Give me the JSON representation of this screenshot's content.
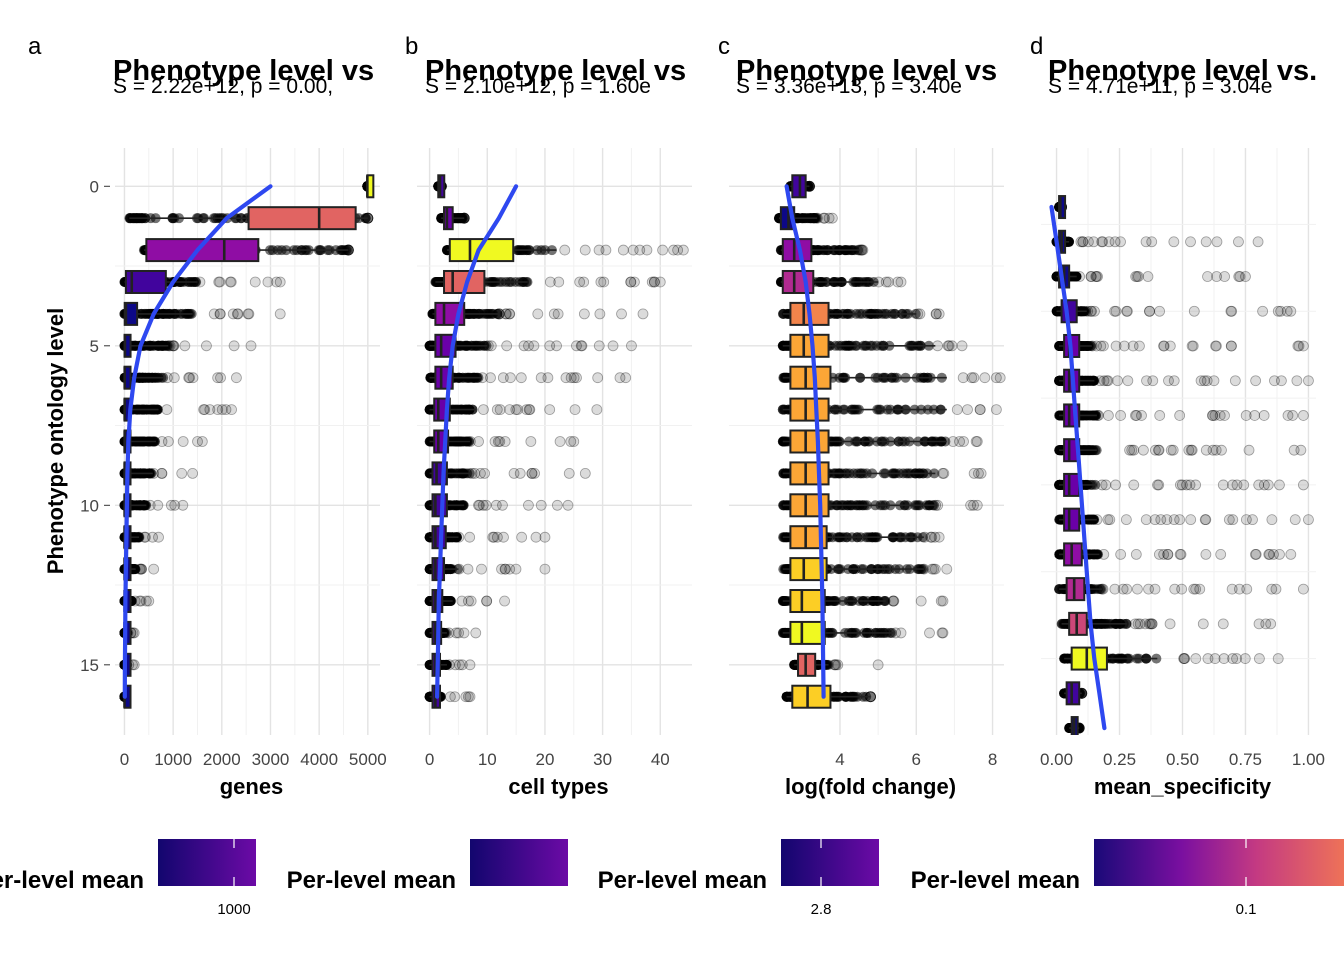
{
  "y_axis_title": "Phenotype ontology level",
  "colors": {
    "points": "#000000",
    "trend": "#2E48F0",
    "grid_major": "#E3E3E3",
    "grid_minor": "#F1F1F1",
    "box_outline": "#222222",
    "palette": [
      "#0D0887",
      "#41049D",
      "#6A00A8",
      "#8F0DA4",
      "#B12A90",
      "#CC4778",
      "#E16462",
      "#F2844B",
      "#FCA636",
      "#FCCE25",
      "#F0F921"
    ]
  },
  "chart_data": [
    {
      "letter": "a",
      "title": "Phenotype level vs",
      "subtitle": "S = 2.22e+12, p = 0.00,",
      "type": "box",
      "xlabel": "genes",
      "ylabel": "Phenotype ontology level",
      "xlim": [
        -30,
        5250
      ],
      "ylim": [
        -1.2,
        17.2
      ],
      "xticks": [
        0,
        1000,
        2000,
        3000,
        4000,
        5000
      ],
      "xticklabels": [
        "0",
        "1000",
        "2000",
        "3000",
        "4000",
        "5000"
      ],
      "yticks": [
        0,
        5,
        10,
        15
      ],
      "levels": [
        0,
        1,
        2,
        3,
        4,
        5,
        6,
        7,
        8,
        9,
        10,
        11,
        12,
        13,
        14,
        15,
        16
      ],
      "boxes": [
        [
          4990,
          4990,
          4990,
          5000,
          5000
        ],
        [
          100,
          2550,
          4000,
          4750,
          5000
        ],
        [
          400,
          450,
          2050,
          2750,
          4600
        ],
        [
          0,
          30,
          150,
          850,
          1500
        ],
        [
          0,
          5,
          30,
          260,
          1400
        ],
        [
          0,
          2,
          10,
          50,
          900
        ],
        [
          0,
          1,
          5,
          30,
          800
        ],
        [
          0,
          1,
          4,
          25,
          700
        ],
        [
          0,
          1,
          4,
          20,
          650
        ],
        [
          0,
          1,
          3,
          18,
          580
        ],
        [
          0,
          1,
          3,
          15,
          450
        ],
        [
          0,
          1,
          2,
          12,
          300
        ],
        [
          0,
          1,
          2,
          10,
          230
        ],
        [
          0,
          1,
          2,
          8,
          150
        ],
        [
          0,
          1,
          1,
          5,
          60
        ],
        [
          0,
          1,
          1,
          3,
          40
        ],
        [
          0,
          1,
          1,
          2,
          10
        ]
      ],
      "fill_index": [
        10,
        6,
        3,
        1,
        0,
        0,
        0,
        0,
        0,
        0,
        0,
        0,
        0,
        0,
        0,
        0,
        0
      ],
      "outlier_max": [
        5000,
        5000,
        4600,
        3200,
        3200,
        2600,
        2300,
        2200,
        1600,
        1400,
        1200,
        700,
        600,
        500,
        200,
        200,
        10
      ],
      "trend_x": [
        3000,
        2100,
        1500,
        1000,
        600,
        330,
        200,
        120,
        80,
        60,
        50,
        40,
        30,
        20,
        15,
        10,
        8
      ],
      "legend": {
        "title": "Per-level mean",
        "ticks": [
          "1000"
        ],
        "cut_left": true
      }
    },
    {
      "letter": "b",
      "title": "Phenotype level vs",
      "subtitle": "S = 2.10e+12, p = 1.60e",
      "type": "box",
      "xlabel": "cell types",
      "ylabel": "",
      "xlim": [
        -0.8,
        45.5
      ],
      "ylim": [
        -1.2,
        17.2
      ],
      "xticks": [
        0,
        10,
        20,
        30,
        40
      ],
      "xticklabels": [
        "0",
        "10",
        "20",
        "30",
        "40"
      ],
      "yticks": [
        0,
        5,
        10,
        15
      ],
      "levels": [
        0,
        1,
        2,
        3,
        4,
        5,
        6,
        7,
        8,
        9,
        10,
        11,
        12,
        13,
        14,
        15,
        16
      ],
      "boxes": [
        [
          1.5,
          1.5,
          1.8,
          2.1,
          2.1
        ],
        [
          2,
          2.5,
          3,
          4,
          6
        ],
        [
          3,
          3.5,
          7,
          14.5,
          22
        ],
        [
          1,
          2.5,
          4,
          9.5,
          17
        ],
        [
          0.5,
          1,
          2.5,
          6,
          12
        ],
        [
          0,
          1,
          2,
          4.5,
          10
        ],
        [
          0,
          1,
          2,
          4,
          9
        ],
        [
          0,
          0.8,
          1.5,
          3.5,
          8
        ],
        [
          0,
          0.8,
          1.5,
          3.2,
          7
        ],
        [
          0,
          0.5,
          1.2,
          3,
          7
        ],
        [
          0,
          0.5,
          1,
          3,
          6
        ],
        [
          0,
          0.5,
          1,
          2.8,
          5
        ],
        [
          0,
          0.5,
          1,
          2.5,
          5
        ],
        [
          0,
          0.5,
          1,
          2.2,
          4
        ],
        [
          0,
          0.5,
          1,
          2,
          3
        ],
        [
          0,
          0.5,
          1,
          1.8,
          3
        ],
        [
          0,
          0.5,
          1,
          1.8,
          2
        ]
      ],
      "fill_index": [
        1,
        2,
        10,
        6,
        3,
        2,
        2,
        2,
        2,
        1,
        1,
        1,
        1,
        1,
        1,
        1,
        1
      ],
      "outlier_max": [
        2,
        6,
        44,
        40,
        37,
        35,
        34,
        29,
        25,
        27,
        24,
        20,
        20,
        13,
        8,
        7,
        7
      ],
      "trend_x": [
        15,
        12,
        8.5,
        6.5,
        5,
        4,
        3.4,
        3,
        2.7,
        2.4,
        2.2,
        2,
        1.8,
        1.6,
        1.5,
        1.4,
        1.3
      ],
      "legend": {
        "title": "Per-level mean",
        "ticks": [],
        "cut_left": false
      }
    },
    {
      "letter": "c",
      "title": "Phenotype level vs",
      "subtitle": "S = 3.36e+13, p = 3.40e",
      "type": "box",
      "xlabel": "log(fold change)",
      "ylabel": "",
      "xlim": [
        1.3,
        8.3
      ],
      "ylim": [
        -1.2,
        17.2
      ],
      "xticks": [
        4,
        6,
        8
      ],
      "xticklabels": [
        "4",
        "6",
        "8"
      ],
      "yticks": [
        0,
        5,
        10,
        15
      ],
      "levels": [
        0,
        1,
        2,
        3,
        4,
        5,
        6,
        7,
        8,
        9,
        10,
        11,
        12,
        13,
        14,
        15,
        16
      ],
      "boxes": [
        [
          2.7,
          2.75,
          2.95,
          3.1,
          3.2
        ],
        [
          2.4,
          2.45,
          2.65,
          2.8,
          3.4
        ],
        [
          2.45,
          2.5,
          2.8,
          3.25,
          4.5
        ],
        [
          2.45,
          2.5,
          2.8,
          3.3,
          5.0
        ],
        [
          2.5,
          2.7,
          3.05,
          3.7,
          6.0
        ],
        [
          2.5,
          2.7,
          3.05,
          3.7,
          6.5
        ],
        [
          2.5,
          2.7,
          3.1,
          3.75,
          6.8
        ],
        [
          2.5,
          2.7,
          3.1,
          3.7,
          6.8
        ],
        [
          2.5,
          2.7,
          3.1,
          3.7,
          6.8
        ],
        [
          2.5,
          2.7,
          3.1,
          3.7,
          6.5
        ],
        [
          2.5,
          2.7,
          3.1,
          3.7,
          6.5
        ],
        [
          2.5,
          2.7,
          3.1,
          3.65,
          6.2
        ],
        [
          2.5,
          2.7,
          3.05,
          3.65,
          6.2
        ],
        [
          2.5,
          2.7,
          3.0,
          3.6,
          5.2
        ],
        [
          2.5,
          2.7,
          3.0,
          3.6,
          5.4
        ],
        [
          2.8,
          2.9,
          3.1,
          3.35,
          3.7
        ],
        [
          2.6,
          2.75,
          3.15,
          3.75,
          4.8
        ]
      ],
      "fill_index": [
        1,
        0,
        3,
        4,
        7,
        8,
        8,
        8,
        8,
        8,
        8,
        8,
        9,
        9,
        10,
        6,
        9
      ],
      "outlier_max": [
        3.2,
        3.8,
        4.6,
        5.6,
        6.6,
        7.2,
        8.2,
        8.1,
        7.6,
        7.7,
        7.6,
        6.6,
        6.8,
        6.7,
        6.7,
        5.0,
        4.8
      ],
      "trend_x": [
        2.6,
        2.75,
        2.95,
        3.1,
        3.2,
        3.28,
        3.34,
        3.38,
        3.42,
        3.45,
        3.48,
        3.5,
        3.52,
        3.54,
        3.55,
        3.56,
        3.57
      ],
      "legend": {
        "title": "Per-level mean",
        "ticks": [
          "2.8"
        ],
        "cut_left": false
      }
    },
    {
      "letter": "d",
      "title": "Phenotype level vs.",
      "subtitle": "S = 4.71e+11, p = 3.04e",
      "type": "box",
      "xlabel": "mean_specificity",
      "ylabel": "",
      "xlim": [
        -0.03,
        1.03
      ],
      "ylim": [
        -0.7,
        16.2
      ],
      "xticks": [
        0,
        0.25,
        0.5,
        0.75,
        1.0
      ],
      "xticklabels": [
        "0.00",
        "0.25",
        "0.50",
        "0.75",
        "1.00"
      ],
      "yticks": [],
      "levels": [
        1,
        2,
        3,
        4,
        5,
        6,
        7,
        8,
        9,
        10,
        11,
        12,
        13,
        14,
        15,
        16
      ],
      "boxes": [
        [
          0.01,
          0.01,
          0.015,
          0.02,
          0.02
        ],
        [
          0.0,
          0.01,
          0.02,
          0.03,
          0.05
        ],
        [
          0.0,
          0.01,
          0.03,
          0.05,
          0.08
        ],
        [
          0.0,
          0.02,
          0.04,
          0.08,
          0.12
        ],
        [
          0.01,
          0.03,
          0.05,
          0.09,
          0.14
        ],
        [
          0.01,
          0.03,
          0.05,
          0.09,
          0.15
        ],
        [
          0.01,
          0.03,
          0.05,
          0.09,
          0.16
        ],
        [
          0.01,
          0.03,
          0.05,
          0.09,
          0.16
        ],
        [
          0.01,
          0.03,
          0.05,
          0.09,
          0.16
        ],
        [
          0.01,
          0.03,
          0.05,
          0.09,
          0.16
        ],
        [
          0.01,
          0.03,
          0.06,
          0.1,
          0.17
        ],
        [
          0.01,
          0.04,
          0.07,
          0.11,
          0.18
        ],
        [
          0.02,
          0.05,
          0.08,
          0.12,
          0.28
        ],
        [
          0.03,
          0.06,
          0.12,
          0.2,
          0.4
        ],
        [
          0.03,
          0.04,
          0.06,
          0.09,
          0.1
        ],
        [
          0.05,
          0.06,
          0.07,
          0.08,
          0.09
        ]
      ],
      "fill_index": [
        0,
        0,
        0,
        1,
        2,
        2,
        2,
        2,
        2,
        2,
        3,
        4,
        5,
        10,
        1,
        0
      ],
      "outlier_max": [
        0.02,
        0.8,
        0.75,
        0.93,
        0.98,
        1.0,
        0.98,
        0.97,
        0.98,
        1.0,
        0.93,
        0.98,
        0.85,
        0.88,
        0.1,
        0.09
      ],
      "trend_x": [
        -0.02,
        0.0,
        0.02,
        0.04,
        0.055,
        0.065,
        0.075,
        0.085,
        0.095,
        0.105,
        0.115,
        0.125,
        0.135,
        0.15,
        0.17,
        0.19
      ],
      "legend": {
        "title": "Per-level mean",
        "ticks": [
          "0.1"
        ],
        "cut_left": false
      }
    }
  ]
}
